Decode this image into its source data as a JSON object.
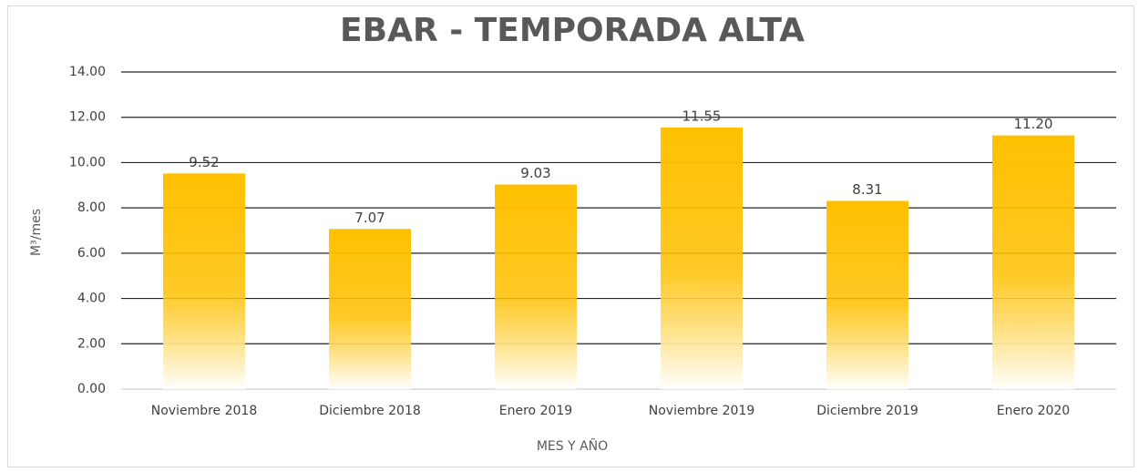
{
  "chart_data": {
    "type": "bar",
    "title": "EBAR - TEMPORADA ALTA",
    "x_label": "MES Y AÑO",
    "y_label": "M³/mes",
    "categories": [
      "Noviembre 2018",
      "Diciembre 2018",
      "Enero 2019",
      "Noviembre 2019",
      "Diciembre 2019",
      "Enero 2020"
    ],
    "values": [
      9.52,
      7.07,
      9.03,
      11.55,
      8.31,
      11.2
    ],
    "value_labels": [
      "9.52",
      "7.07",
      "9.03",
      "11.55",
      "8.31",
      "11.20"
    ],
    "color": "#ffc000",
    "ylim": [
      0,
      14
    ],
    "yticks": [
      {
        "value": 0,
        "label": "0.00"
      },
      {
        "value": 2,
        "label": "2.00"
      },
      {
        "value": 4,
        "label": "4.00"
      },
      {
        "value": 6,
        "label": "6.00"
      },
      {
        "value": 8,
        "label": "8.00"
      },
      {
        "value": 10,
        "label": "10.00"
      },
      {
        "value": 12,
        "label": "12.00"
      },
      {
        "value": 14,
        "label": "14.00"
      }
    ],
    "grid": true
  }
}
